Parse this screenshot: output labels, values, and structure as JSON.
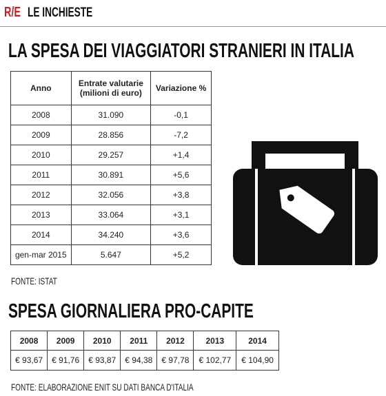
{
  "header": {
    "logo": "R/E",
    "section": "LE INCHIESTE"
  },
  "title": "LA SPESA DEI VIAGGIATORI STRANIERI IN ITALIA",
  "table": {
    "columns": [
      "Anno",
      "Entrate valutarie (milioni di euro)",
      "Variazione %"
    ],
    "rows": [
      [
        "2008",
        "31.090",
        "-0,1"
      ],
      [
        "2009",
        "28.856",
        "-7,2"
      ],
      [
        "2010",
        "29.257",
        "+1,4"
      ],
      [
        "2011",
        "30.891",
        "+5,6"
      ],
      [
        "2012",
        "32.056",
        "+3,8"
      ],
      [
        "2013",
        "33.064",
        "+3,1"
      ],
      [
        "2014",
        "34.240",
        "+3,6"
      ],
      [
        "gen-mar 2015",
        "5.647",
        "+5,2"
      ]
    ]
  },
  "source": "FONTE: ISTAT",
  "title2": "SPESA GIORNALIERA PRO-CAPITE",
  "table2": {
    "columns": [
      "2008",
      "2009",
      "2010",
      "2011",
      "2012",
      "2013",
      "2014"
    ],
    "values": [
      "€ 93,67",
      "€ 91,76",
      "€ 93,87",
      "€ 94,38",
      "€ 97,78",
      "€ 102,77",
      "€ 104,90"
    ]
  },
  "source2": "FONTE: ELABORAZIONE ENIT SU DATI BANCA D'ITALIA"
}
